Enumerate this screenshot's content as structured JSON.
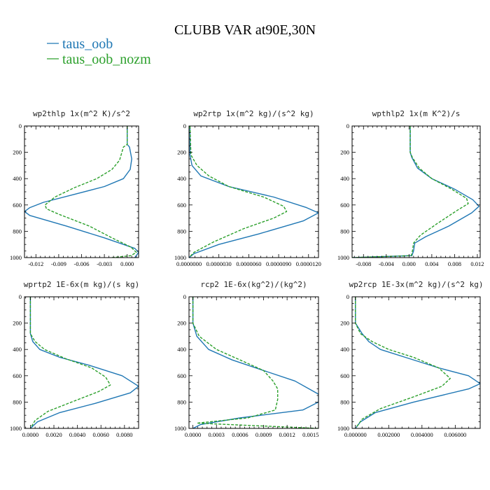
{
  "chart_data": {
    "type": "line",
    "title": "CLUBB VAR at90E,30N",
    "legend": [
      {
        "name": "taus_oob",
        "color": "#1f77b4",
        "dash": "solid"
      },
      {
        "name": "taus_oob_nozm",
        "color": "#2ca02c",
        "dash": "dashed"
      }
    ],
    "panels": [
      {
        "title": "wp2thlp  1x(m^2 K)/s^2",
        "xlim": [
          -0.0135,
          0.0015
        ],
        "ylim": [
          1000,
          0
        ],
        "xticks": [
          -0.012,
          -0.009,
          -0.006,
          -0.003,
          0.0
        ],
        "xtick_labels": [
          "-0.012",
          "-0.009",
          "-0.006",
          "-0.003",
          "0.000"
        ],
        "yticks": [
          0,
          200,
          400,
          600,
          800,
          1000
        ],
        "ytick_labels": [
          "0",
          "200",
          "400",
          "600",
          "800",
          "1000"
        ],
        "series": [
          {
            "name": "taus_oob",
            "x": [
              0,
              0,
              0.0003,
              0.0006,
              0.0004,
              -0.0005,
              -0.003,
              -0.007,
              -0.011,
              -0.0128,
              -0.0135,
              -0.0128,
              -0.008,
              -0.003,
              0.001,
              0.0015,
              0.001
            ],
            "y": [
              0,
              140,
              160,
              250,
              330,
              400,
              460,
              520,
              580,
              620,
              650,
              680,
              760,
              850,
              930,
              960,
              1000
            ]
          },
          {
            "name": "taus_oob_nozm",
            "x": [
              0,
              0,
              -0.0005,
              -0.001,
              -0.002,
              -0.004,
              -0.007,
              -0.0095,
              -0.0108,
              -0.0106,
              -0.009,
              -0.005,
              -0.002,
              0.0005,
              0.0012,
              0.0005,
              -0.002
            ],
            "y": [
              0,
              140,
              160,
              260,
              330,
              400,
              470,
              540,
              600,
              630,
              670,
              760,
              850,
              920,
              960,
              985,
              1000
            ]
          }
        ]
      },
      {
        "title": "wp2rtp  1x(m^2 kg)/(s^2 kg)",
        "xlim": [
          0,
          1.3e-05
        ],
        "ylim": [
          1000,
          0
        ],
        "xticks": [
          0,
          3e-06,
          6e-06,
          9e-06,
          1.2e-05
        ],
        "xtick_labels": [
          "0.0000000",
          "0.0000030",
          "0.0000060",
          "0.0000090",
          "0.0000120"
        ],
        "yticks": [
          0,
          200,
          400,
          600,
          800,
          1000
        ],
        "ytick_labels": [
          "0",
          "200",
          "400",
          "600",
          "800",
          "1000"
        ],
        "series": [
          {
            "name": "taus_oob",
            "x": [
              1e-07,
              1e-07,
              3e-07,
              1.2e-06,
              4e-06,
              8.5e-06,
              1.18e-05,
              1.3e-05,
              1.15e-05,
              7e-06,
              3e-06,
              5e-07,
              0.0
            ],
            "y": [
              0,
              220,
              300,
              380,
              460,
              540,
              620,
              660,
              720,
              820,
              900,
              970,
              1000
            ]
          },
          {
            "name": "taus_oob_nozm",
            "x": [
              1e-07,
              2e-07,
              8e-07,
              2e-06,
              4e-06,
              7.5e-06,
              9.5e-06,
              9.8e-06,
              8.5e-06,
              5.5e-06,
              2.5e-06,
              5e-07,
              0.0
            ],
            "y": [
              0,
              220,
              300,
              380,
              460,
              540,
              610,
              650,
              700,
              780,
              880,
              960,
              1000
            ]
          }
        ]
      },
      {
        "title": "wpthlp2  1x(m K^2)/s",
        "xlim": [
          -0.01,
          0.0125
        ],
        "ylim": [
          1000,
          0
        ],
        "xticks": [
          -0.008,
          -0.004,
          0.0,
          0.004,
          0.008,
          0.012
        ],
        "xtick_labels": [
          "-0.008",
          "-0.004",
          "0.000",
          "0.004",
          "0.008",
          "0.012"
        ],
        "yticks": [
          0,
          200,
          400,
          600,
          800,
          1000
        ],
        "ytick_labels": [
          "0",
          "200",
          "400",
          "600",
          "800",
          "1000"
        ],
        "series": [
          {
            "name": "taus_oob",
            "x": [
              0.0002,
              0.0002,
              0.0005,
              0.0015,
              0.004,
              0.008,
              0.0112,
              0.0123,
              0.011,
              0.007,
              0.003,
              0.001,
              0.0008,
              0.0005,
              -0.01
            ],
            "y": [
              0,
              200,
              240,
              320,
              400,
              480,
              560,
              610,
              660,
              760,
              840,
              890,
              950,
              985,
              1000
            ]
          },
          {
            "name": "taus_oob_nozm",
            "x": [
              0.0002,
              0.0002,
              0.0006,
              0.0018,
              0.004,
              0.0075,
              0.0101,
              0.0104,
              0.0085,
              0.005,
              0.002,
              0.0008,
              0.0006,
              0.0004,
              -0.01
            ],
            "y": [
              0,
              200,
              240,
              320,
              400,
              480,
              550,
              590,
              640,
              740,
              830,
              890,
              950,
              985,
              1000
            ]
          }
        ]
      },
      {
        "title": "wprtp2  1E-6x(m kg)/(s kg)",
        "xlim": [
          -0.0005,
          0.0092
        ],
        "ylim": [
          1000,
          0
        ],
        "xticks": [
          0.0,
          0.002,
          0.004,
          0.006,
          0.008
        ],
        "xtick_labels": [
          "0.0000",
          "0.0020",
          "0.0040",
          "0.0060",
          "0.0080"
        ],
        "yticks": [
          0,
          200,
          400,
          600,
          800,
          1000
        ],
        "ytick_labels": [
          "0",
          "200",
          "400",
          "600",
          "800",
          "1000"
        ],
        "series": [
          {
            "name": "taus_oob",
            "x": [
              0.0,
              0.0,
              0.0002,
              0.0008,
              0.0025,
              0.005,
              0.0078,
              0.0092,
              0.0085,
              0.0055,
              0.0025,
              0.0006,
              0.0
            ],
            "y": [
              0,
              280,
              340,
              400,
              460,
              520,
              600,
              680,
              730,
              810,
              880,
              950,
              1000
            ]
          },
          {
            "name": "taus_oob_nozm",
            "x": [
              0.0,
              0.0,
              0.0004,
              0.0012,
              0.003,
              0.0052,
              0.0064,
              0.0068,
              0.0058,
              0.0035,
              0.0015,
              0.0004,
              0.0
            ],
            "y": [
              0,
              280,
              340,
              400,
              470,
              540,
              610,
              670,
              720,
              800,
              870,
              940,
              1000
            ]
          }
        ]
      },
      {
        "title": "rcp2  1E-6x(kg^2)/(kg^2)",
        "xlim": [
          -5e-05,
          0.0016
        ],
        "ylim": [
          1000,
          0
        ],
        "xticks": [
          0.0,
          0.0003,
          0.0006,
          0.0009,
          0.0012,
          0.0015
        ],
        "xtick_labels": [
          "0.0000",
          "0.0003",
          "0.0006",
          "0.0009",
          "0.0012",
          "0.0015"
        ],
        "yticks": [
          0,
          200,
          400,
          600,
          800,
          1000
        ],
        "ytick_labels": [
          "0",
          "200",
          "400",
          "600",
          "800",
          "1000"
        ],
        "series": [
          {
            "name": "taus_oob",
            "x": [
              0.0,
              0.0,
              5e-05,
              0.0002,
              0.0005,
              0.0009,
              0.0013,
              0.0016,
              0.0016,
              0.0014,
              0.0006,
              0.0001,
              0.0
            ],
            "y": [
              0,
              200,
              300,
              400,
              480,
              560,
              640,
              740,
              800,
              860,
              920,
              970,
              1000
            ]
          },
          {
            "name": "taus_oob_nozm",
            "x": [
              0.0,
              0.0,
              8e-05,
              0.0003,
              0.0006,
              0.0009,
              0.00102,
              0.00108,
              0.00108,
              0.00105,
              0.0007,
              5e-05,
              0.0016
            ],
            "y": [
              0,
              200,
              300,
              400,
              480,
              560,
              640,
              700,
              780,
              860,
              920,
              960,
              1000
            ]
          }
        ]
      },
      {
        "title": "wp2rcp  1E-3x(m^2 kg)/(s^2 kg)",
        "xlim": [
          -0.0002,
          0.0075
        ],
        "ylim": [
          1000,
          0
        ],
        "xticks": [
          0.0,
          0.002,
          0.004,
          0.006
        ],
        "xtick_labels": [
          "0.000000",
          "0.002000",
          "0.004000",
          "0.006000"
        ],
        "yticks": [
          0,
          200,
          400,
          600,
          800,
          1000
        ],
        "ytick_labels": [
          "0",
          "200",
          "400",
          "600",
          "800",
          "1000"
        ],
        "series": [
          {
            "name": "taus_oob",
            "x": [
              0.0,
              0.0,
              0.0004,
              0.0008,
              0.0015,
              0.003,
              0.005,
              0.0068,
              0.0075,
              0.0068,
              0.0035,
              0.0012,
              0.0003,
              0.0
            ],
            "y": [
              0,
              200,
              280,
              340,
              400,
              460,
              540,
              600,
              660,
              700,
              800,
              880,
              950,
              1000
            ]
          },
          {
            "name": "taus_oob_nozm",
            "x": [
              0.0,
              0.0,
              0.0003,
              0.001,
              0.002,
              0.0035,
              0.005,
              0.0057,
              0.0052,
              0.0035,
              0.0015,
              0.0004,
              0.0
            ],
            "y": [
              0,
              200,
              280,
              340,
              400,
              460,
              540,
              620,
              680,
              760,
              850,
              930,
              1000
            ]
          }
        ]
      }
    ]
  }
}
